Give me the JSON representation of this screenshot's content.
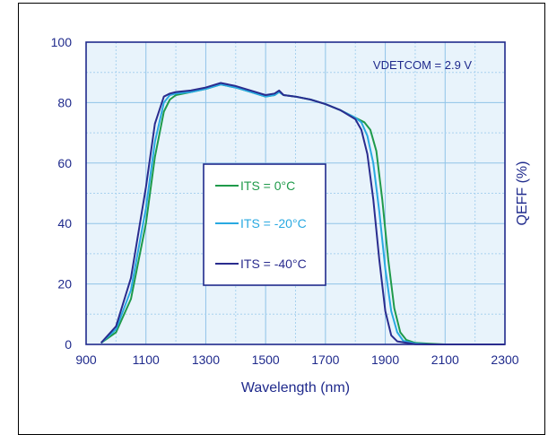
{
  "chart_data": {
    "type": "line",
    "title": "",
    "xlabel": "Wavelength (nm)",
    "ylabel": "QEFF (%)",
    "xlim": [
      900,
      2300
    ],
    "ylim": [
      0,
      100
    ],
    "xticks": [
      "900",
      "1100",
      "1300",
      "1500",
      "1700",
      "1900",
      "2100",
      "2300"
    ],
    "yticks": [
      "0",
      "20",
      "40",
      "60",
      "80",
      "100"
    ],
    "grid": true,
    "annotation": "VDETCOM = 2.9 V",
    "legend_placement": "center-left",
    "series": [
      {
        "name": "ITS = 0°C",
        "color": "#1f9a4a",
        "x": [
          950,
          1000,
          1050,
          1100,
          1130,
          1160,
          1180,
          1200,
          1250,
          1300,
          1350,
          1400,
          1450,
          1500,
          1530,
          1545,
          1560,
          1600,
          1650,
          1700,
          1750,
          1800,
          1830,
          1850,
          1870,
          1890,
          1910,
          1930,
          1950,
          1970,
          2000,
          2050,
          2100,
          2200,
          2300
        ],
        "y": [
          0.5,
          4,
          15,
          40,
          62,
          77,
          81,
          82.5,
          83.5,
          84.5,
          86,
          85,
          83.5,
          82,
          82.5,
          83.5,
          82.5,
          82,
          81,
          79.5,
          77.5,
          75,
          73.5,
          71,
          64,
          48,
          28,
          12,
          4,
          1.5,
          0.5,
          0.2,
          0,
          0,
          0
        ]
      },
      {
        "name": "ITS = -20°C",
        "color": "#29a9e1",
        "x": [
          950,
          1000,
          1050,
          1100,
          1130,
          1160,
          1180,
          1200,
          1250,
          1300,
          1350,
          1400,
          1450,
          1500,
          1530,
          1545,
          1560,
          1600,
          1650,
          1700,
          1750,
          1800,
          1820,
          1840,
          1860,
          1880,
          1900,
          1920,
          1940,
          1960,
          2000,
          2050,
          2100,
          2200,
          2300
        ],
        "y": [
          0.5,
          5,
          18,
          45,
          67,
          80,
          82.5,
          83,
          83.5,
          84.5,
          86,
          85,
          83.5,
          82,
          82.5,
          83.5,
          82.5,
          82,
          81,
          79.5,
          77.5,
          75,
          73.5,
          69,
          60,
          44,
          25,
          11,
          4,
          1.2,
          0.3,
          0,
          0,
          0,
          0
        ]
      },
      {
        "name": "ITS = -40°C",
        "color": "#2a2c8e",
        "x": [
          950,
          1000,
          1050,
          1100,
          1130,
          1160,
          1180,
          1200,
          1250,
          1300,
          1350,
          1400,
          1450,
          1500,
          1530,
          1545,
          1560,
          1600,
          1650,
          1700,
          1750,
          1800,
          1820,
          1840,
          1860,
          1880,
          1900,
          1920,
          1940,
          2000,
          2050,
          2100,
          2200,
          2300
        ],
        "y": [
          0.5,
          6,
          22,
          52,
          73,
          82,
          83,
          83.5,
          84,
          85,
          86.5,
          85.5,
          84,
          82.5,
          83,
          84,
          82.5,
          82,
          81,
          79.5,
          77.5,
          74.5,
          71,
          63,
          48,
          28,
          11,
          3,
          1,
          0.1,
          0,
          0,
          0,
          0
        ]
      }
    ]
  }
}
